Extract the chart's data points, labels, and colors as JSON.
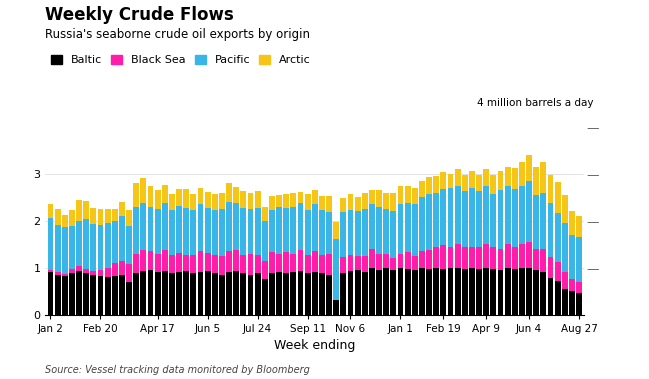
{
  "title": "Weekly Crude Flows",
  "subtitle": "Russia's seaborne crude oil exports by origin",
  "xlabel": "Week ending",
  "ylabel_annotation": "4 million barrels a day",
  "source": "Source: Vessel tracking data monitored by Bloomberg",
  "colors": {
    "Baltic": "#000000",
    "Black Sea": "#ff1daa",
    "Pacific": "#3ab5e8",
    "Arctic": "#f5c518"
  },
  "legend_labels": [
    "Baltic",
    "Black Sea",
    "Pacific",
    "Arctic"
  ],
  "xtick_labels": [
    "Jan 2",
    "Feb 20",
    "Apr 17",
    "Jun 5",
    "Jul 24",
    "Sep 11",
    "Nov 6",
    "Jan 1",
    "Feb 19",
    "Apr 9",
    "Jun 4",
    "Aug 27"
  ],
  "ylim": [
    0,
    4.2
  ],
  "yticks": [
    0,
    1,
    2,
    3
  ],
  "background_color": "#ffffff",
  "baltic": [
    0.9,
    0.85,
    0.82,
    0.88,
    0.92,
    0.88,
    0.85,
    0.83,
    0.8,
    0.82,
    0.85,
    0.7,
    0.88,
    0.92,
    0.95,
    0.9,
    0.92,
    0.88,
    0.9,
    0.92,
    0.88,
    0.9,
    0.92,
    0.88,
    0.85,
    0.9,
    0.92,
    0.88,
    0.85,
    0.88,
    0.75,
    0.88,
    0.9,
    0.88,
    0.9,
    0.92,
    0.88,
    0.9,
    0.88,
    0.85,
    0.3,
    0.88,
    0.92,
    0.95,
    0.9,
    1.0,
    0.95,
    1.0,
    0.95,
    1.0,
    0.98,
    0.95,
    1.0,
    0.98,
    1.0,
    0.98,
    1.0,
    1.0,
    0.98,
    1.0,
    0.98,
    1.0,
    0.98,
    0.95,
    1.0,
    0.98,
    1.0,
    1.0,
    0.95,
    0.9,
    0.78,
    0.72,
    0.55,
    0.5,
    0.45
  ],
  "black_sea": [
    0.05,
    0.05,
    0.05,
    0.1,
    0.12,
    0.1,
    0.08,
    0.12,
    0.2,
    0.28,
    0.3,
    0.38,
    0.42,
    0.45,
    0.4,
    0.4,
    0.45,
    0.4,
    0.42,
    0.35,
    0.4,
    0.45,
    0.4,
    0.4,
    0.4,
    0.45,
    0.45,
    0.4,
    0.45,
    0.4,
    0.4,
    0.45,
    0.4,
    0.45,
    0.4,
    0.45,
    0.4,
    0.45,
    0.4,
    0.45,
    0.02,
    0.35,
    0.35,
    0.3,
    0.35,
    0.4,
    0.35,
    0.3,
    0.25,
    0.3,
    0.35,
    0.3,
    0.35,
    0.4,
    0.45,
    0.5,
    0.45,
    0.5,
    0.45,
    0.45,
    0.45,
    0.5,
    0.45,
    0.45,
    0.5,
    0.45,
    0.5,
    0.55,
    0.45,
    0.5,
    0.45,
    0.4,
    0.35,
    0.25,
    0.25
  ],
  "pacific": [
    1.1,
    1.0,
    1.0,
    0.9,
    0.95,
    1.05,
    1.0,
    0.95,
    0.95,
    0.9,
    0.95,
    0.8,
    1.0,
    1.0,
    0.95,
    0.95,
    1.0,
    0.95,
    1.0,
    1.0,
    0.95,
    1.0,
    0.95,
    0.95,
    1.0,
    1.05,
    1.0,
    1.0,
    0.95,
    1.0,
    0.85,
    0.9,
    1.0,
    0.95,
    1.0,
    1.0,
    0.95,
    1.0,
    0.95,
    0.88,
    1.3,
    0.95,
    0.95,
    0.95,
    1.0,
    0.95,
    1.0,
    0.95,
    1.0,
    1.05,
    1.05,
    1.1,
    1.15,
    1.2,
    1.15,
    1.2,
    1.25,
    1.25,
    1.2,
    1.25,
    1.2,
    1.25,
    1.15,
    1.25,
    1.25,
    1.25,
    1.25,
    1.3,
    1.15,
    1.2,
    1.15,
    1.05,
    1.05,
    0.95,
    0.95
  ],
  "arctic": [
    0.3,
    0.35,
    0.25,
    0.35,
    0.45,
    0.4,
    0.35,
    0.35,
    0.3,
    0.25,
    0.3,
    0.35,
    0.5,
    0.55,
    0.45,
    0.4,
    0.4,
    0.35,
    0.35,
    0.4,
    0.35,
    0.35,
    0.35,
    0.35,
    0.35,
    0.4,
    0.35,
    0.35,
    0.35,
    0.35,
    0.3,
    0.3,
    0.25,
    0.3,
    0.3,
    0.25,
    0.35,
    0.3,
    0.3,
    0.35,
    0.35,
    0.3,
    0.35,
    0.3,
    0.35,
    0.3,
    0.35,
    0.35,
    0.4,
    0.4,
    0.35,
    0.35,
    0.35,
    0.35,
    0.35,
    0.35,
    0.3,
    0.35,
    0.35,
    0.35,
    0.35,
    0.35,
    0.4,
    0.4,
    0.4,
    0.45,
    0.5,
    0.55,
    0.6,
    0.65,
    0.6,
    0.65,
    0.6,
    0.5,
    0.45
  ],
  "xtick_positions": [
    0,
    7,
    15,
    22,
    29,
    36,
    42,
    49,
    55,
    61,
    67,
    74
  ]
}
